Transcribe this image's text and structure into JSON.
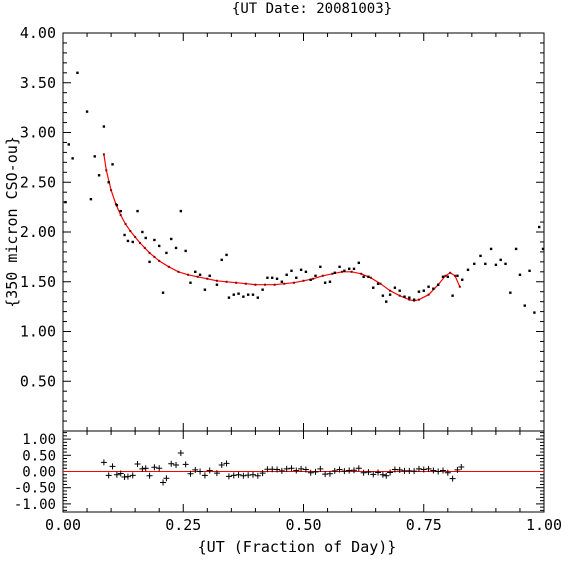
{
  "chart_data": {
    "type": "scatter",
    "title": "{UT Date: 20081003}",
    "xlabel": "{UT (Fraction of Day)}",
    "ylabel": "{350 micron CSO-ou}",
    "xlim": [
      0.0,
      1.0
    ],
    "ylim": [
      0.0,
      4.0
    ],
    "x_ticks": [
      "0.00",
      "0.25",
      "0.50",
      "0.75",
      "1.00"
    ],
    "y_ticks": [
      "0.50",
      "1.00",
      "1.50",
      "2.00",
      "2.50",
      "3.00",
      "3.50",
      "4.00"
    ],
    "residual_ylim": [
      -1.25,
      1.25
    ],
    "residual_ticks": [
      "1.00",
      "0.50",
      "0.00",
      "-0.50",
      "-1.00"
    ],
    "colors": {
      "points": "#000000",
      "fit": "#ff0000",
      "axes": "#000000"
    },
    "points": [
      [
        0.005,
        2.3
      ],
      [
        0.012,
        2.88
      ],
      [
        0.02,
        2.74
      ],
      [
        0.03,
        3.6
      ],
      [
        0.05,
        3.21
      ],
      [
        0.058,
        2.33
      ],
      [
        0.066,
        2.76
      ],
      [
        0.075,
        2.57
      ],
      [
        0.085,
        3.06
      ],
      [
        0.095,
        2.5
      ],
      [
        0.103,
        2.68
      ],
      [
        0.112,
        2.27
      ],
      [
        0.12,
        2.21
      ],
      [
        0.128,
        1.97
      ],
      [
        0.135,
        1.91
      ],
      [
        0.145,
        1.9
      ],
      [
        0.155,
        2.21
      ],
      [
        0.165,
        2.0
      ],
      [
        0.172,
        1.94
      ],
      [
        0.18,
        1.7
      ],
      [
        0.19,
        1.92
      ],
      [
        0.2,
        1.86
      ],
      [
        0.208,
        1.39
      ],
      [
        0.215,
        1.79
      ],
      [
        0.225,
        1.93
      ],
      [
        0.235,
        1.84
      ],
      [
        0.245,
        2.21
      ],
      [
        0.255,
        1.81
      ],
      [
        0.265,
        1.49
      ],
      [
        0.275,
        1.6
      ],
      [
        0.285,
        1.57
      ],
      [
        0.295,
        1.42
      ],
      [
        0.305,
        1.56
      ],
      [
        0.32,
        1.47
      ],
      [
        0.33,
        1.72
      ],
      [
        0.34,
        1.77
      ],
      [
        0.345,
        1.34
      ],
      [
        0.355,
        1.37
      ],
      [
        0.365,
        1.38
      ],
      [
        0.375,
        1.35
      ],
      [
        0.385,
        1.37
      ],
      [
        0.395,
        1.37
      ],
      [
        0.405,
        1.34
      ],
      [
        0.415,
        1.42
      ],
      [
        0.425,
        1.54
      ],
      [
        0.435,
        1.54
      ],
      [
        0.445,
        1.53
      ],
      [
        0.455,
        1.5
      ],
      [
        0.465,
        1.57
      ],
      [
        0.475,
        1.61
      ],
      [
        0.485,
        1.54
      ],
      [
        0.495,
        1.62
      ],
      [
        0.505,
        1.6
      ],
      [
        0.515,
        1.52
      ],
      [
        0.525,
        1.56
      ],
      [
        0.535,
        1.65
      ],
      [
        0.545,
        1.49
      ],
      [
        0.555,
        1.5
      ],
      [
        0.565,
        1.59
      ],
      [
        0.575,
        1.65
      ],
      [
        0.585,
        1.61
      ],
      [
        0.595,
        1.63
      ],
      [
        0.605,
        1.63
      ],
      [
        0.615,
        1.69
      ],
      [
        0.625,
        1.55
      ],
      [
        0.635,
        1.55
      ],
      [
        0.645,
        1.44
      ],
      [
        0.655,
        1.48
      ],
      [
        0.665,
        1.36
      ],
      [
        0.672,
        1.3
      ],
      [
        0.68,
        1.37
      ],
      [
        0.69,
        1.44
      ],
      [
        0.7,
        1.41
      ],
      [
        0.71,
        1.35
      ],
      [
        0.72,
        1.34
      ],
      [
        0.73,
        1.32
      ],
      [
        0.74,
        1.4
      ],
      [
        0.75,
        1.41
      ],
      [
        0.76,
        1.45
      ],
      [
        0.77,
        1.43
      ],
      [
        0.78,
        1.47
      ],
      [
        0.79,
        1.55
      ],
      [
        0.8,
        1.55
      ],
      [
        0.81,
        1.36
      ],
      [
        0.82,
        1.56
      ],
      [
        0.83,
        1.52
      ],
      [
        0.842,
        1.62
      ],
      [
        0.855,
        1.68
      ],
      [
        0.868,
        1.76
      ],
      [
        0.878,
        1.68
      ],
      [
        0.89,
        1.83
      ],
      [
        0.9,
        1.67
      ],
      [
        0.91,
        1.72
      ],
      [
        0.92,
        1.68
      ],
      [
        0.93,
        1.39
      ],
      [
        0.942,
        1.83
      ],
      [
        0.95,
        1.57
      ],
      [
        0.96,
        1.26
      ],
      [
        0.97,
        1.61
      ],
      [
        0.98,
        1.19
      ],
      [
        0.99,
        2.05
      ],
      [
        0.998,
        1.83
      ]
    ],
    "fit": [
      [
        0.085,
        2.78
      ],
      [
        0.09,
        2.62
      ],
      [
        0.1,
        2.42
      ],
      [
        0.11,
        2.28
      ],
      [
        0.12,
        2.17
      ],
      [
        0.13,
        2.08
      ],
      [
        0.14,
        2.01
      ],
      [
        0.15,
        1.95
      ],
      [
        0.16,
        1.89
      ],
      [
        0.17,
        1.84
      ],
      [
        0.18,
        1.79
      ],
      [
        0.19,
        1.75
      ],
      [
        0.2,
        1.71
      ],
      [
        0.22,
        1.65
      ],
      [
        0.24,
        1.6
      ],
      [
        0.26,
        1.57
      ],
      [
        0.28,
        1.55
      ],
      [
        0.3,
        1.53
      ],
      [
        0.32,
        1.51
      ],
      [
        0.34,
        1.5
      ],
      [
        0.36,
        1.49
      ],
      [
        0.38,
        1.48
      ],
      [
        0.4,
        1.47
      ],
      [
        0.42,
        1.47
      ],
      [
        0.44,
        1.47
      ],
      [
        0.46,
        1.48
      ],
      [
        0.48,
        1.49
      ],
      [
        0.5,
        1.51
      ],
      [
        0.52,
        1.53
      ],
      [
        0.54,
        1.56
      ],
      [
        0.56,
        1.58
      ],
      [
        0.58,
        1.6
      ],
      [
        0.6,
        1.6
      ],
      [
        0.62,
        1.58
      ],
      [
        0.64,
        1.54
      ],
      [
        0.66,
        1.48
      ],
      [
        0.68,
        1.41
      ],
      [
        0.7,
        1.36
      ],
      [
        0.72,
        1.32
      ],
      [
        0.73,
        1.31
      ],
      [
        0.74,
        1.32
      ],
      [
        0.76,
        1.37
      ],
      [
        0.78,
        1.47
      ],
      [
        0.795,
        1.56
      ],
      [
        0.805,
        1.59
      ],
      [
        0.815,
        1.56
      ],
      [
        0.825,
        1.45
      ]
    ],
    "residuals": [
      [
        0.085,
        0.28
      ],
      [
        0.095,
        -0.12
      ],
      [
        0.103,
        0.16
      ],
      [
        0.112,
        -0.1
      ],
      [
        0.12,
        -0.06
      ],
      [
        0.128,
        -0.17
      ],
      [
        0.135,
        -0.16
      ],
      [
        0.145,
        -0.12
      ],
      [
        0.155,
        0.23
      ],
      [
        0.165,
        0.08
      ],
      [
        0.172,
        0.1
      ],
      [
        0.18,
        -0.13
      ],
      [
        0.19,
        0.13
      ],
      [
        0.2,
        0.1
      ],
      [
        0.208,
        -0.34
      ],
      [
        0.215,
        -0.21
      ],
      [
        0.225,
        0.24
      ],
      [
        0.235,
        0.2
      ],
      [
        0.245,
        0.57
      ],
      [
        0.255,
        0.22
      ],
      [
        0.265,
        -0.07
      ],
      [
        0.275,
        0.05
      ],
      [
        0.285,
        0.0
      ],
      [
        0.295,
        -0.12
      ],
      [
        0.305,
        0.03
      ],
      [
        0.32,
        -0.05
      ],
      [
        0.33,
        0.2
      ],
      [
        0.34,
        0.25
      ],
      [
        0.345,
        -0.15
      ],
      [
        0.355,
        -0.12
      ],
      [
        0.365,
        -0.1
      ],
      [
        0.375,
        -0.13
      ],
      [
        0.385,
        -0.11
      ],
      [
        0.395,
        -0.1
      ],
      [
        0.405,
        -0.13
      ],
      [
        0.415,
        -0.05
      ],
      [
        0.425,
        0.07
      ],
      [
        0.435,
        0.07
      ],
      [
        0.445,
        0.06
      ],
      [
        0.455,
        0.02
      ],
      [
        0.465,
        0.08
      ],
      [
        0.475,
        0.1
      ],
      [
        0.485,
        0.03
      ],
      [
        0.495,
        0.08
      ],
      [
        0.505,
        0.06
      ],
      [
        0.515,
        -0.04
      ],
      [
        0.525,
        -0.01
      ],
      [
        0.535,
        0.08
      ],
      [
        0.545,
        -0.08
      ],
      [
        0.555,
        -0.07
      ],
      [
        0.565,
        0.02
      ],
      [
        0.575,
        0.06
      ],
      [
        0.585,
        0.01
      ],
      [
        0.595,
        0.03
      ],
      [
        0.605,
        0.04
      ],
      [
        0.615,
        0.1
      ],
      [
        0.625,
        -0.04
      ],
      [
        0.635,
        -0.02
      ],
      [
        0.645,
        -0.09
      ],
      [
        0.655,
        -0.03
      ],
      [
        0.665,
        -0.1
      ],
      [
        0.672,
        -0.13
      ],
      [
        0.68,
        -0.03
      ],
      [
        0.69,
        0.06
      ],
      [
        0.7,
        0.05
      ],
      [
        0.71,
        0.02
      ],
      [
        0.72,
        0.02
      ],
      [
        0.73,
        0.01
      ],
      [
        0.74,
        0.08
      ],
      [
        0.75,
        0.06
      ],
      [
        0.76,
        0.08
      ],
      [
        0.77,
        0.03
      ],
      [
        0.78,
        0.0
      ],
      [
        0.79,
        0.03
      ],
      [
        0.8,
        -0.04
      ],
      [
        0.81,
        -0.22
      ],
      [
        0.82,
        0.05
      ],
      [
        0.828,
        0.14
      ]
    ]
  }
}
